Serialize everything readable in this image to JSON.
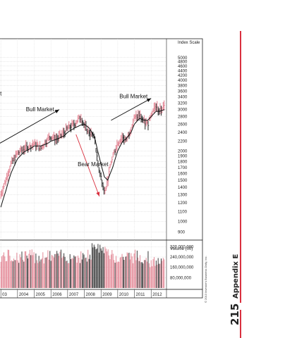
{
  "page": {
    "section": "Appendix E",
    "page_number": "215",
    "copyright": "© 2013 Investor's Business Daily, Inc.",
    "accent_color": "#d9303f"
  },
  "chart_data": {
    "type": "line",
    "price_panel": {
      "scale_title": "Index Scale",
      "scale": "log",
      "ylim": [
        850,
        5500
      ],
      "ticks": [
        5000,
        4800,
        4600,
        4400,
        4200,
        4000,
        3800,
        3600,
        3400,
        3200,
        3000,
        2800,
        2600,
        2400,
        2200,
        2000,
        1900,
        1800,
        1700,
        1600,
        1500,
        1400,
        1300,
        1200,
        1100,
        1000,
        900
      ],
      "x": [
        2003.0,
        2003.3,
        2003.6,
        2004.0,
        2004.4,
        2004.8,
        2005.0,
        2005.4,
        2005.8,
        2006.0,
        2006.4,
        2006.8,
        2007.0,
        2007.4,
        2007.8,
        2008.0,
        2008.3,
        2008.6,
        2008.8,
        2009.0,
        2009.2,
        2009.4,
        2009.7,
        2010.0,
        2010.3,
        2010.5,
        2010.8,
        2011.0,
        2011.3,
        2011.6,
        2011.8,
        2012.0,
        2012.3,
        2012.5,
        2012.8
      ],
      "series": [
        {
          "values": [
            1300,
            1500,
            1750,
            1950,
            2050,
            2100,
            2150,
            2050,
            2250,
            2300,
            2250,
            2400,
            2500,
            2600,
            2800,
            2550,
            2400,
            2300,
            1750,
            1550,
            1320,
            1500,
            1900,
            2150,
            2300,
            2200,
            2500,
            2750,
            2850,
            2650,
            2600,
            2900,
            3100,
            2950,
            3100
          ]
        },
        {
          "values": [
            1150,
            1350,
            1600,
            1850,
            1980,
            2050,
            2100,
            2100,
            2150,
            2200,
            2250,
            2320,
            2400,
            2500,
            2580,
            2600,
            2500,
            2300,
            2000,
            1750,
            1550,
            1500,
            1700,
            2000,
            2200,
            2250,
            2400,
            2600,
            2750,
            2700,
            2700,
            2800,
            2950,
            2950,
            3000
          ]
        }
      ],
      "annotations": [
        {
          "text": "Bull Market",
          "x": 2004.5,
          "y": 2950
        },
        {
          "text": "Bear Market",
          "x": 2007.6,
          "y": 1720
        },
        {
          "text": "Bull Market",
          "x": 2010.1,
          "y": 3350
        },
        {
          "text": "ket",
          "x": 2002.6,
          "y": 3450
        }
      ],
      "trend_arrows": [
        {
          "from": [
            2002.4,
            2050
          ],
          "to": [
            2006.5,
            3000
          ]
        },
        {
          "from": [
            2007.5,
            2350
          ],
          "to": [
            2008.9,
            1280
          ]
        },
        {
          "from": [
            2009.6,
            2700
          ],
          "to": [
            2012.0,
            3350
          ]
        }
      ]
    },
    "volume_panel": {
      "title": "Volume (00)",
      "ticks": [
        "320,000,000",
        "240,000,000",
        "160,000,000",
        "80,000,000"
      ],
      "tick_values": [
        320000000,
        240000000,
        160000000,
        80000000
      ],
      "ylim": [
        0,
        360000000
      ]
    },
    "x_axis": {
      "labels": [
        "03",
        "2004",
        "2005",
        "2006",
        "2007",
        "2008",
        "2009",
        "2010",
        "2011",
        "2012"
      ],
      "years": [
        2003,
        2004,
        2005,
        2006,
        2007,
        2008,
        2009,
        2010,
        2011,
        2012
      ]
    },
    "grid": true,
    "colors": {
      "up_bar": "#e07a8a",
      "down_bar": "#222222",
      "moving_average": "#111111",
      "arrow_bear": "#d9303f",
      "arrow_bull": "#111111"
    }
  }
}
